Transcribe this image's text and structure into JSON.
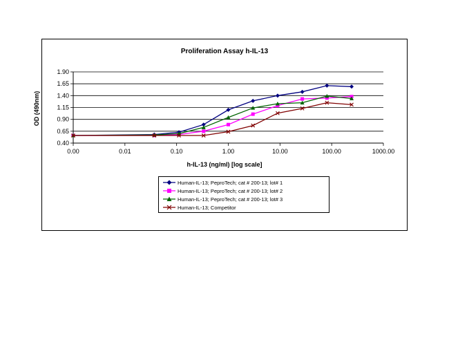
{
  "chart_data": {
    "type": "line",
    "title": "Proliferation Assay h-IL-13",
    "xlabel": "h-IL-13 (ng/ml) [log scale]",
    "ylabel": "OD (490nm)",
    "x_scale": "log",
    "x_tick_labels": [
      "0.00",
      "0.01",
      "0.10",
      "1.00",
      "10.00",
      "100.00",
      "1000.00"
    ],
    "y_tick_labels": [
      "0.40",
      "0.65",
      "0.90",
      "1.15",
      "1.40",
      "1.65",
      "1.90"
    ],
    "ylim": [
      0.4,
      1.9
    ],
    "grid": true,
    "legend_position": "bottom",
    "x": [
      0.001,
      0.037,
      0.111,
      0.333,
      1.0,
      3.0,
      9.0,
      27.0,
      81.0,
      243.0
    ],
    "series": [
      {
        "name": "Human-IL-13; PeproTech; cat # 200-13; lot# 1",
        "color": "#000080",
        "marker": "diamond",
        "values": [
          0.56,
          0.58,
          0.63,
          0.79,
          1.1,
          1.29,
          1.4,
          1.48,
          1.61,
          1.59
        ]
      },
      {
        "name": "Human-IL-13; PeproTech; cat # 200-13; lot# 2",
        "color": "#FF00FF",
        "marker": "square",
        "values": [
          0.56,
          0.56,
          0.58,
          0.65,
          0.79,
          1.01,
          1.19,
          1.33,
          1.35,
          1.38
        ]
      },
      {
        "name": "Human-IL-13; PeproTech; cat # 200-13; lot# 3",
        "color": "#006400",
        "marker": "triangle",
        "values": [
          0.56,
          0.57,
          0.6,
          0.73,
          0.94,
          1.14,
          1.23,
          1.25,
          1.39,
          1.34
        ]
      },
      {
        "name": "Human-IL-13; Competitor",
        "color": "#800000",
        "marker": "x",
        "values": [
          0.56,
          0.56,
          0.56,
          0.56,
          0.64,
          0.77,
          1.03,
          1.13,
          1.25,
          1.21
        ]
      }
    ]
  }
}
